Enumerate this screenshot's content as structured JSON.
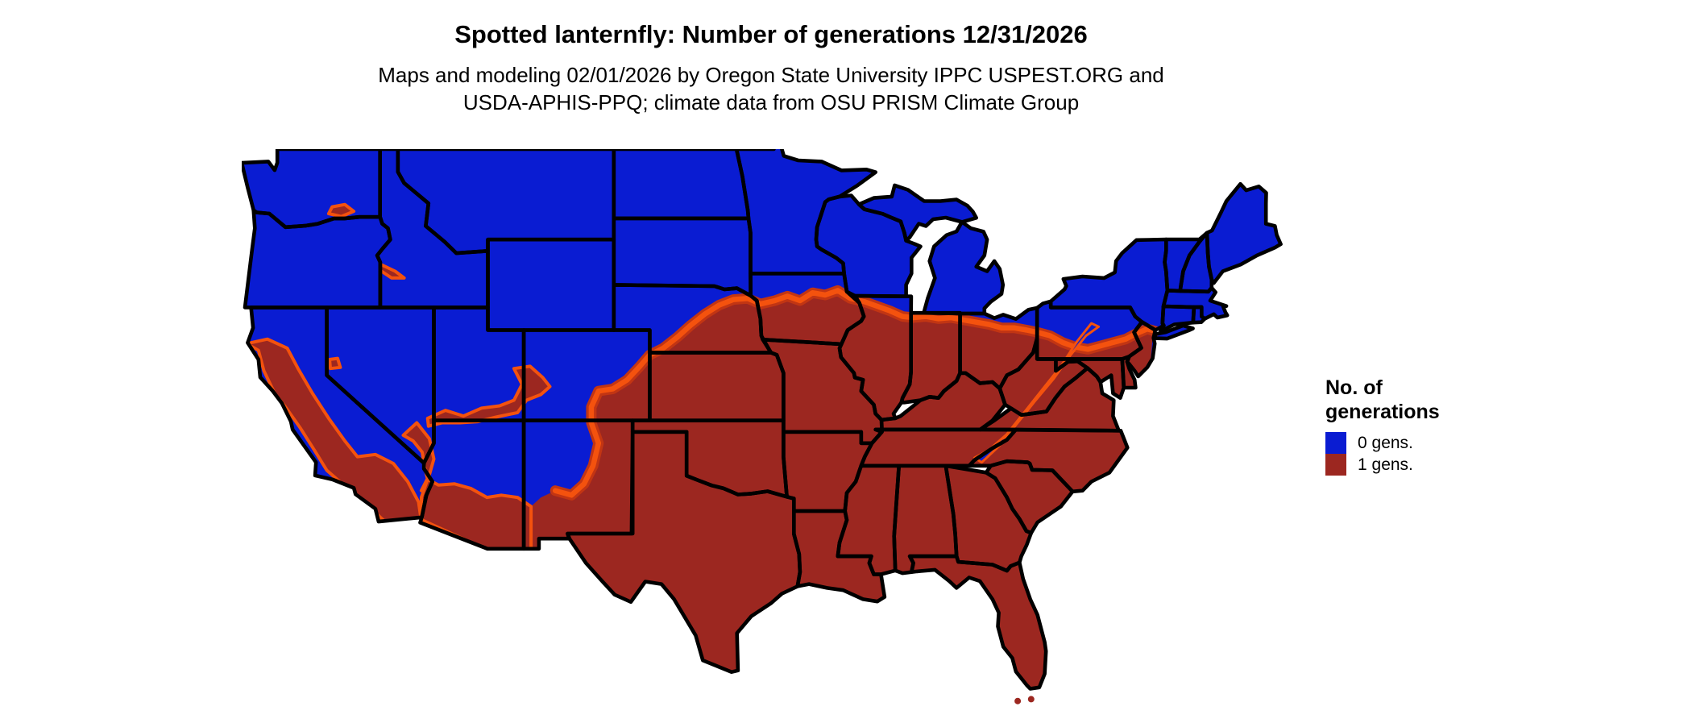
{
  "header": {
    "title": "Spotted lanternfly: Number of generations 12/31/2026",
    "subtitle_line1": "Maps and modeling 02/01/2026 by Oregon State University IPPC USPEST.ORG and",
    "subtitle_line2": "USDA-APHIS-PPQ; climate data from OSU PRISM Climate Group"
  },
  "legend": {
    "title_line1": "No. of",
    "title_line2": "generations",
    "items": [
      {
        "label": "0 gens.",
        "value": 0,
        "color": "#0A1CD2"
      },
      {
        "label": "1 gens.",
        "value": 1,
        "color": "#9C2720"
      }
    ]
  },
  "map": {
    "region": "Contiguous United States",
    "colors": {
      "zero_generations": "#0A1CD2",
      "one_generation": "#9C2720",
      "transition_band_bright": "#F4520E",
      "transition_band_dark": "#C23513",
      "state_border": "#000000",
      "background": "#FFFFFF"
    }
  }
}
